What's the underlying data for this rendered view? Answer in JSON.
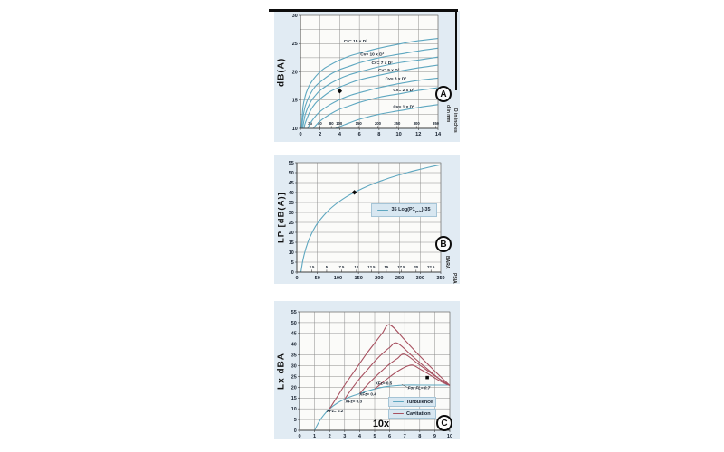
{
  "colors": {
    "blue": "#5ea7c0",
    "red": "#a85160",
    "panel": "#e1ebf3",
    "plot": "#fbfbf9",
    "grid": "#8c8c8c",
    "axis": "#3c3c3c",
    "text": "#16202e",
    "marker": "#0a0a0a",
    "legend_bg": "#d8e7f1"
  },
  "chart_data": [
    {
      "id": "A",
      "type": "line",
      "badge": "A",
      "y_title": "dB(A)",
      "right_label_inner": "d in mm",
      "right_label_outer": "D in inches",
      "x": {
        "min": 0,
        "max": 14,
        "tick_values": [
          0,
          2,
          4,
          6,
          8,
          10,
          12,
          14
        ],
        "tick_labels": [
          "0",
          "2",
          "4",
          "6",
          "8",
          "10",
          "12",
          "14"
        ]
      },
      "y": {
        "min": 10,
        "max": 30,
        "grid_step": 2.5,
        "tick_values": [
          10,
          15,
          20,
          25,
          30
        ],
        "tick_labels": [
          "10",
          "15",
          "20",
          "25",
          "30"
        ]
      },
      "inner_axis": {
        "labels": [
          "25",
          "50",
          "80",
          "100",
          "150",
          "200",
          "250",
          "300",
          "350"
        ],
        "values": [
          0.98,
          1.97,
          3.15,
          3.94,
          5.91,
          7.87,
          9.84,
          11.81,
          13.78
        ]
      },
      "series": [
        {
          "name": "cv-15",
          "label": "Cv= 15 x D²",
          "label_x": 5.6,
          "label_y": 25.2,
          "color": "blue",
          "points": [
            [
              0.1,
              10
            ],
            [
              0.25,
              13.7
            ],
            [
              0.5,
              15.8
            ],
            [
              0.75,
              17.0
            ],
            [
              1,
              17.9
            ],
            [
              1.5,
              19.1
            ],
            [
              2,
              20.0
            ],
            [
              2.5,
              20.7
            ],
            [
              3,
              21.2
            ],
            [
              4,
              22.1
            ],
            [
              5,
              22.8
            ],
            [
              6,
              23.3
            ],
            [
              8,
              24.2
            ],
            [
              10,
              24.9
            ],
            [
              12,
              25.5
            ],
            [
              14,
              25.9
            ]
          ]
        },
        {
          "name": "cv-10",
          "label": "Cv= 10 x D²",
          "label_x": 7.3,
          "label_y": 22.9,
          "color": "blue",
          "points": [
            [
              0.14,
              10
            ],
            [
              0.25,
              11.9
            ],
            [
              0.5,
              14.0
            ],
            [
              1,
              16.1
            ],
            [
              1.5,
              17.4
            ],
            [
              2,
              18.2
            ],
            [
              3,
              19.5
            ],
            [
              4,
              20.4
            ],
            [
              5,
              21.0
            ],
            [
              6,
              21.6
            ],
            [
              8,
              22.5
            ],
            [
              10,
              23.1
            ],
            [
              12,
              23.7
            ],
            [
              14,
              24.2
            ]
          ]
        },
        {
          "name": "cv-7",
          "label": "Cv= 7 x D²",
          "label_x": 8.3,
          "label_y": 21.4,
          "color": "blue",
          "points": [
            [
              0.22,
              10
            ],
            [
              0.5,
              12.5
            ],
            [
              1,
              14.6
            ],
            [
              1.5,
              15.8
            ],
            [
              2,
              16.7
            ],
            [
              3,
              17.9
            ],
            [
              4,
              18.8
            ],
            [
              5,
              19.5
            ],
            [
              6,
              20.0
            ],
            [
              8,
              20.9
            ],
            [
              10,
              21.6
            ],
            [
              12,
              22.1
            ],
            [
              14,
              22.6
            ]
          ]
        },
        {
          "name": "cv-5",
          "label": "Cv= 5 x D²",
          "label_x": 9.0,
          "label_y": 20.1,
          "color": "blue",
          "points": [
            [
              0.36,
              10
            ],
            [
              0.5,
              11.0
            ],
            [
              1,
              13.1
            ],
            [
              1.5,
              14.4
            ],
            [
              2,
              15.2
            ],
            [
              3,
              16.5
            ],
            [
              4,
              17.3
            ],
            [
              5,
              18.0
            ],
            [
              6,
              18.6
            ],
            [
              8,
              19.4
            ],
            [
              10,
              20.1
            ],
            [
              12,
              20.7
            ],
            [
              14,
              21.2
            ]
          ]
        },
        {
          "name": "cv-3",
          "label": "Cv= 3 x D²",
          "label_x": 9.7,
          "label_y": 18.6,
          "color": "blue",
          "points": [
            [
              0.74,
              10
            ],
            [
              1,
              10.9
            ],
            [
              1.5,
              12.1
            ],
            [
              2,
              13.0
            ],
            [
              3,
              14.2
            ],
            [
              4,
              15.1
            ],
            [
              5,
              15.8
            ],
            [
              6,
              16.3
            ],
            [
              8,
              17.2
            ],
            [
              10,
              17.9
            ],
            [
              12,
              18.5
            ],
            [
              14,
              18.9
            ]
          ]
        },
        {
          "name": "cv-2",
          "label": "Cv= 2 x D²",
          "label_x": 10.5,
          "label_y": 16.6,
          "color": "blue",
          "points": [
            [
              1.33,
              10
            ],
            [
              1.5,
              10.4
            ],
            [
              2,
              11.3
            ],
            [
              3,
              12.5
            ],
            [
              4,
              13.4
            ],
            [
              5,
              14.0
            ],
            [
              6,
              14.6
            ],
            [
              8,
              15.5
            ],
            [
              10,
              16.1
            ],
            [
              12,
              16.7
            ],
            [
              14,
              17.2
            ]
          ]
        },
        {
          "name": "cv-1",
          "label": "Cv= 1 x D²",
          "label_x": 10.5,
          "label_y": 13.6,
          "color": "blue",
          "points": [
            [
              3.57,
              10
            ],
            [
              4,
              10.3
            ],
            [
              5,
              11.0
            ],
            [
              6,
              11.6
            ],
            [
              8,
              12.5
            ],
            [
              10,
              13.1
            ],
            [
              12,
              13.7
            ],
            [
              14,
              14.2
            ]
          ]
        }
      ],
      "annotations": [],
      "markers": [
        {
          "shape": "diamond",
          "x": 4,
          "y": 16.6
        }
      ]
    },
    {
      "id": "B",
      "type": "line",
      "badge": "B",
      "y_title": "LP [dB(A)]",
      "right_label_inner": "BARA",
      "right_label_outer": "PSIA",
      "x": {
        "min": 0,
        "max": 350,
        "tick_values": [
          0,
          50,
          100,
          150,
          200,
          250,
          300,
          350
        ],
        "tick_labels": [
          "0",
          "50",
          "100",
          "150",
          "200",
          "250",
          "300",
          "350"
        ]
      },
      "y": {
        "min": 0,
        "max": 55,
        "grid_step": 5,
        "tick_values": [
          0,
          5,
          10,
          15,
          20,
          25,
          30,
          35,
          40,
          45,
          50,
          55
        ],
        "tick_labels": [
          "0",
          "5",
          "10",
          "15",
          "20",
          "25",
          "30",
          "35",
          "40",
          "45",
          "50",
          "55"
        ]
      },
      "inner_axis": {
        "labels": [
          "2.5",
          "5",
          "7.5",
          "10",
          "12.5",
          "15",
          "17.5",
          "20",
          "22.5"
        ],
        "values": [
          36.3,
          72.5,
          108.8,
          145,
          181.3,
          217.6,
          254,
          290.1,
          326.3
        ]
      },
      "series": [
        {
          "name": "lp-curve",
          "color": "blue",
          "points": [
            [
              10,
              0
            ],
            [
              12,
              2.8
            ],
            [
              15,
              6.2
            ],
            [
              20,
              10.5
            ],
            [
              25,
              13.9
            ],
            [
              30,
              16.7
            ],
            [
              40,
              21.1
            ],
            [
              50,
              24.5
            ],
            [
              60,
              27.2
            ],
            [
              80,
              31.6
            ],
            [
              100,
              35.0
            ],
            [
              120,
              37.8
            ],
            [
              140,
              40.1
            ],
            [
              160,
              42.1
            ],
            [
              180,
              43.9
            ],
            [
              200,
              45.5
            ],
            [
              225,
              47.3
            ],
            [
              250,
              48.9
            ],
            [
              275,
              50.4
            ],
            [
              300,
              51.7
            ],
            [
              325,
              52.9
            ],
            [
              350,
              54.0
            ]
          ]
        }
      ],
      "legend": {
        "prefix": "35 Log(P1",
        "sub": "psia",
        "suffix": ")-35"
      },
      "annotations": [],
      "markers": [
        {
          "shape": "diamond",
          "x": 140,
          "y": 40.1
        }
      ]
    },
    {
      "id": "C",
      "type": "line",
      "badge": "C",
      "y_title": "Lx dBA",
      "x_title": "10x",
      "x": {
        "min": 0,
        "max": 10,
        "tick_values": [
          0,
          1,
          2,
          3,
          4,
          5,
          6,
          7,
          8,
          9,
          10
        ],
        "tick_labels": [
          "0",
          "1",
          "2",
          "3",
          "4",
          "5",
          "6",
          "7",
          "8",
          "9",
          "10"
        ]
      },
      "y": {
        "min": 0,
        "max": 55,
        "grid_step": 5,
        "tick_values": [
          0,
          5,
          10,
          15,
          20,
          25,
          30,
          35,
          40,
          45,
          50,
          55
        ],
        "tick_labels": [
          "0",
          "5",
          "10",
          "15",
          "20",
          "25",
          "30",
          "35",
          "40",
          "45",
          "50",
          "55"
        ]
      },
      "series": [
        {
          "name": "turbulence",
          "color": "blue",
          "points": [
            [
              1,
              0
            ],
            [
              1.3,
              4.0
            ],
            [
              1.6,
              7.0
            ],
            [
              2,
              10.0
            ],
            [
              2.5,
              12.6
            ],
            [
              3,
              14.5
            ],
            [
              3.5,
              15.9
            ],
            [
              4,
              17.0
            ],
            [
              4.5,
              18.2
            ],
            [
              5,
              19.2
            ],
            [
              5.5,
              20.0
            ],
            [
              6,
              20.5
            ],
            [
              6.5,
              20.8
            ],
            [
              7,
              21.0
            ],
            [
              8,
              21.0
            ],
            [
              9,
              21.0
            ],
            [
              10,
              21.0
            ]
          ]
        },
        {
          "name": "cavitation-xfz-0.2",
          "color": "red",
          "points": [
            [
              2,
              10
            ],
            [
              2.5,
              15.5
            ],
            [
              3,
              21
            ],
            [
              3.5,
              26
            ],
            [
              4,
              31
            ],
            [
              4.5,
              36
            ],
            [
              5,
              40.5
            ],
            [
              5.5,
              45
            ],
            [
              6,
              49
            ],
            [
              7,
              42
            ],
            [
              8,
              34.5
            ],
            [
              9,
              27.5
            ],
            [
              10,
              20.8
            ]
          ]
        },
        {
          "name": "cavitation-xfz-0.3",
          "color": "red",
          "points": [
            [
              3,
              14.5
            ],
            [
              3.5,
              19.5
            ],
            [
              4,
              24
            ],
            [
              4.5,
              28
            ],
            [
              5,
              32
            ],
            [
              5.5,
              35.5
            ],
            [
              6,
              38.5
            ],
            [
              6.5,
              40.5
            ],
            [
              7.5,
              34.5
            ],
            [
              8.5,
              28.5
            ],
            [
              9.5,
              22.8
            ],
            [
              10,
              21
            ]
          ]
        },
        {
          "name": "cavitation-xfz-0.4",
          "color": "red",
          "points": [
            [
              4,
              17
            ],
            [
              4.5,
              21
            ],
            [
              5,
              24.5
            ],
            [
              5.5,
              27.8
            ],
            [
              6,
              30.8
            ],
            [
              6.5,
              33.3
            ],
            [
              7,
              35.3
            ],
            [
              8,
              30.3
            ],
            [
              9,
              25.3
            ],
            [
              10,
              20.8
            ]
          ]
        },
        {
          "name": "cavitation-xfz-0.5",
          "color": "red",
          "points": [
            [
              5,
              19.2
            ],
            [
              5.5,
              22
            ],
            [
              6,
              24.8
            ],
            [
              6.5,
              27.3
            ],
            [
              7,
              29.3
            ],
            [
              7.5,
              30.3
            ],
            [
              8,
              28.5
            ],
            [
              8.5,
              26.5
            ],
            [
              9,
              24.3
            ],
            [
              9.5,
              22.3
            ],
            [
              10,
              20.8
            ]
          ]
        }
      ],
      "annotations": [
        {
          "text": "XFz= 0.2",
          "x": 2.35,
          "y": 8.4
        },
        {
          "text": "XFz= 0.3",
          "x": 3.6,
          "y": 12.9
        },
        {
          "text": "XFz= 0.4",
          "x": 4.55,
          "y": 16.2
        },
        {
          "text": "XFz= 0.5",
          "x": 5.6,
          "y": 21.3
        },
        {
          "text": "For FL= 0.7",
          "x": 7.95,
          "y": 19.2,
          "italic": true
        }
      ],
      "arrow": {
        "x1": 7.2,
        "y1": 19.9,
        "x2": 6.8,
        "y2": 21.3
      },
      "legend_items": [
        {
          "label": "Turbulence",
          "color": "blue"
        },
        {
          "label": "Cavitation",
          "color": "red"
        }
      ],
      "markers": [
        {
          "shape": "square",
          "x": 8.5,
          "y": 24.5
        }
      ]
    }
  ]
}
